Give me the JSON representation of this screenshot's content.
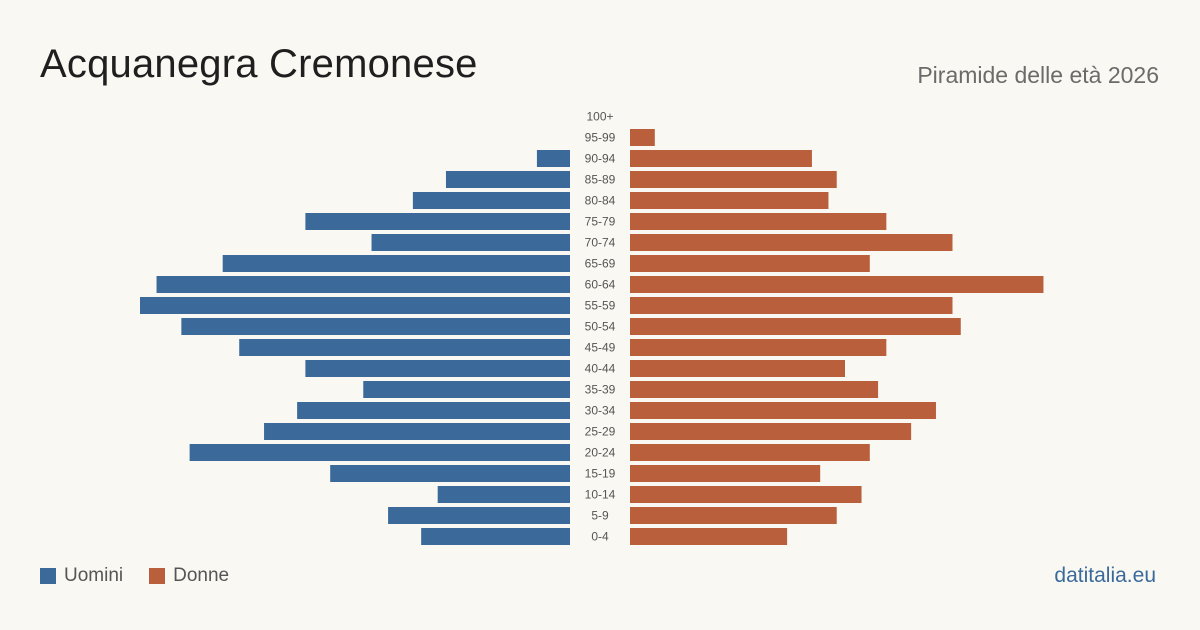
{
  "header": {
    "title": "Acquanegra Cremonese",
    "subtitle": "Piramide delle età 2026"
  },
  "legend": {
    "men_label": "Uomini",
    "women_label": "Donne"
  },
  "brand": "datitalia.eu",
  "colors": {
    "men": "#3b6a9a",
    "women": "#b95f3c",
    "background": "#faf8f3"
  },
  "chart_data": {
    "type": "bar",
    "orientation": "horizontal-pyramid",
    "categories": [
      "100+",
      "95-99",
      "90-94",
      "85-89",
      "80-84",
      "75-79",
      "70-74",
      "65-69",
      "60-64",
      "55-59",
      "50-54",
      "45-49",
      "40-44",
      "35-39",
      "30-34",
      "25-29",
      "20-24",
      "15-19",
      "10-14",
      "5-9",
      "0-4"
    ],
    "series": [
      {
        "name": "Uomini",
        "values": [
          0,
          0,
          4,
          15,
          19,
          32,
          24,
          42,
          50,
          52,
          47,
          40,
          32,
          25,
          33,
          37,
          46,
          29,
          16,
          22,
          18
        ]
      },
      {
        "name": "Donne",
        "values": [
          0,
          3,
          22,
          25,
          24,
          31,
          39,
          29,
          50,
          39,
          40,
          31,
          26,
          30,
          37,
          34,
          29,
          23,
          28,
          25,
          19
        ]
      }
    ]
  }
}
